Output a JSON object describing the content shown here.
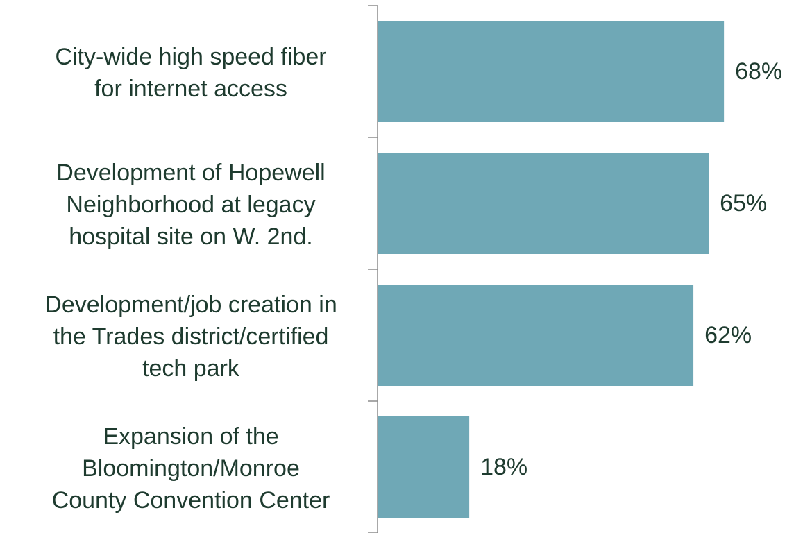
{
  "chart_data": {
    "type": "bar",
    "orientation": "horizontal",
    "categories": [
      [
        "City-wide high speed fiber",
        "for internet access"
      ],
      [
        "Development of Hopewell",
        "Neighborhood at legacy",
        "hospital site on W. 2nd."
      ],
      [
        "Development/job creation in",
        "the Trades district/certified",
        "tech park"
      ],
      [
        "Expansion of the",
        "Bloomington/Monroe",
        "County Convention Center"
      ]
    ],
    "values": [
      68,
      65,
      62,
      18
    ],
    "value_labels": [
      "68%",
      "65%",
      "62%",
      "18%"
    ],
    "color": "#6fa8b6"
  }
}
